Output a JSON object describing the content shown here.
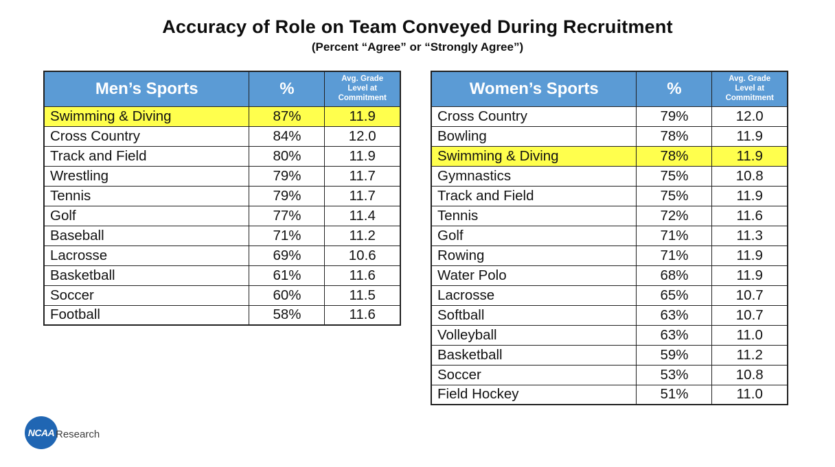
{
  "slide": {
    "title": "Accuracy of Role on Team Conveyed During Recruitment",
    "subtitle": "(Percent “Agree” or “Strongly Agree”)"
  },
  "chart_data": [
    {
      "type": "table",
      "name": "mens_sports",
      "columns": [
        "Men’s Sports",
        "%",
        "Avg. Grade Level at Commitment"
      ],
      "highlighted_sport": "Swimming & Diving",
      "rows": [
        {
          "sport": "Swimming & Diving",
          "percent": "87%",
          "avg_grade_level": "11.9",
          "highlight": true
        },
        {
          "sport": "Cross Country",
          "percent": "84%",
          "avg_grade_level": "12.0",
          "highlight": false
        },
        {
          "sport": "Track and Field",
          "percent": "80%",
          "avg_grade_level": "11.9",
          "highlight": false
        },
        {
          "sport": "Wrestling",
          "percent": "79%",
          "avg_grade_level": "11.7",
          "highlight": false
        },
        {
          "sport": "Tennis",
          "percent": "79%",
          "avg_grade_level": "11.7",
          "highlight": false
        },
        {
          "sport": "Golf",
          "percent": "77%",
          "avg_grade_level": "11.4",
          "highlight": false
        },
        {
          "sport": "Baseball",
          "percent": "71%",
          "avg_grade_level": "11.2",
          "highlight": false
        },
        {
          "sport": "Lacrosse",
          "percent": "69%",
          "avg_grade_level": "10.6",
          "highlight": false
        },
        {
          "sport": "Basketball",
          "percent": "61%",
          "avg_grade_level": "11.6",
          "highlight": false
        },
        {
          "sport": "Soccer",
          "percent": "60%",
          "avg_grade_level": "11.5",
          "highlight": false
        },
        {
          "sport": "Football",
          "percent": "58%",
          "avg_grade_level": "11.6",
          "highlight": false
        }
      ]
    },
    {
      "type": "table",
      "name": "womens_sports",
      "columns": [
        "Women’s Sports",
        "%",
        "Avg. Grade Level at Commitment"
      ],
      "highlighted_sport": "Swimming & Diving",
      "rows": [
        {
          "sport": "Cross Country",
          "percent": "79%",
          "avg_grade_level": "12.0",
          "highlight": false
        },
        {
          "sport": "Bowling",
          "percent": "78%",
          "avg_grade_level": "11.9",
          "highlight": false
        },
        {
          "sport": "Swimming & Diving",
          "percent": "78%",
          "avg_grade_level": "11.9",
          "highlight": true
        },
        {
          "sport": "Gymnastics",
          "percent": "75%",
          "avg_grade_level": "10.8",
          "highlight": false
        },
        {
          "sport": "Track and Field",
          "percent": "75%",
          "avg_grade_level": "11.9",
          "highlight": false
        },
        {
          "sport": "Tennis",
          "percent": "72%",
          "avg_grade_level": "11.6",
          "highlight": false
        },
        {
          "sport": "Golf",
          "percent": "71%",
          "avg_grade_level": "11.3",
          "highlight": false
        },
        {
          "sport": "Rowing",
          "percent": "71%",
          "avg_grade_level": "11.9",
          "highlight": false
        },
        {
          "sport": "Water Polo",
          "percent": "68%",
          "avg_grade_level": "11.9",
          "highlight": false
        },
        {
          "sport": "Lacrosse",
          "percent": "65%",
          "avg_grade_level": "10.7",
          "highlight": false
        },
        {
          "sport": "Softball",
          "percent": "63%",
          "avg_grade_level": "10.7",
          "highlight": false
        },
        {
          "sport": "Volleyball",
          "percent": "63%",
          "avg_grade_level": "11.0",
          "highlight": false
        },
        {
          "sport": "Basketball",
          "percent": "59%",
          "avg_grade_level": "11.2",
          "highlight": false
        },
        {
          "sport": "Soccer",
          "percent": "53%",
          "avg_grade_level": "10.8",
          "highlight": false
        },
        {
          "sport": "Field Hockey",
          "percent": "51%",
          "avg_grade_level": "11.0",
          "highlight": false
        }
      ]
    }
  ],
  "footer": {
    "logo": "NCAA",
    "logo_label": "Research"
  },
  "colors": {
    "table_header_bg": "#5B9BD5",
    "table_header_text": "#FFFFFF",
    "highlight_yellow": "#FFFF4D",
    "table_border": "#1F1F1F",
    "logo_blue": "#2066B3"
  }
}
